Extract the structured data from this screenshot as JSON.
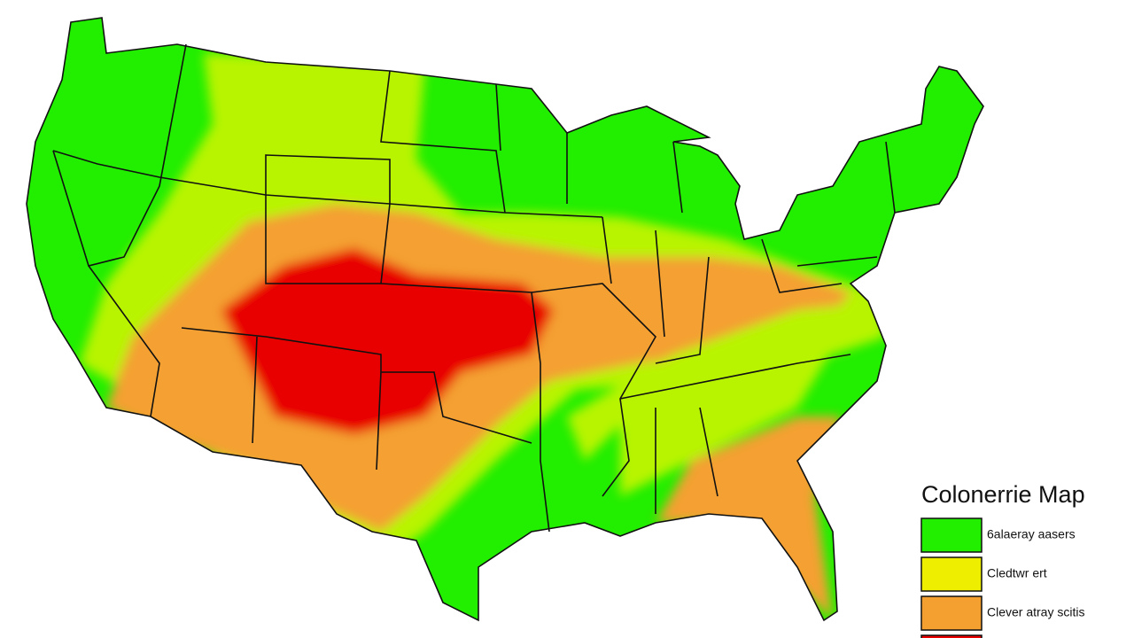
{
  "legend": {
    "title": "Colonerrie Map",
    "items": [
      {
        "label": "6alaeray aasers",
        "color": "#22ee00"
      },
      {
        "label": "Cledtwr ert",
        "color": "#eeee00"
      },
      {
        "label": "Clever atray scitis",
        "color": "#f4a030"
      },
      {
        "color": "#e80000"
      }
    ]
  }
}
